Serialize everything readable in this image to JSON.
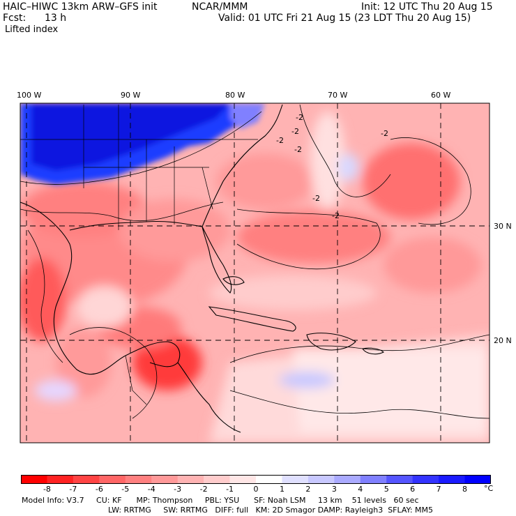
{
  "header": {
    "model": "HAIC–HIWC 13km ARW–GFS init",
    "org": "NCAR/MMM",
    "init": "Init: 12 UTC Thu 20 Aug 15",
    "fcst_label": "Fcst:",
    "fcst_value": "13 h",
    "valid": "Valid: 01 UTC Fri 21 Aug 15 (23 LDT Thu 20 Aug 15)",
    "field": "Lifted index"
  },
  "map_axes": {
    "lon_labels": [
      "100 W",
      "90 W",
      "80 W",
      "70 W",
      "60 W"
    ],
    "lat_labels": [
      "30 N",
      "20 N"
    ],
    "contour_labels": [
      "-2",
      "-2",
      "-2",
      "-2",
      "-2",
      "-2",
      "-2"
    ]
  },
  "colorbar": {
    "labels": [
      "-8",
      "-7",
      "-6",
      "-5",
      "-4",
      "-3",
      "-2",
      "-1",
      "0",
      "1",
      "2",
      "3",
      "4",
      "5",
      "6",
      "7",
      "8"
    ],
    "unit": "°C",
    "colors": [
      "#ff0000",
      "#ff2222",
      "#ff4444",
      "#ff6666",
      "#ff8080",
      "#ff9999",
      "#ffb3b3",
      "#ffcccc",
      "#ffe6e6",
      "#ffffff",
      "#e0e0ff",
      "#c8c8ff",
      "#aaaaff",
      "#8080ff",
      "#5555ff",
      "#3333ff",
      "#1a1aff",
      "#0000ff"
    ]
  },
  "footer": {
    "line1": "Model Info: V3.7     CU: KF      MP: Thompson     PBL: YSU      SF: Noah LSM     13 km    51 levels   60 sec",
    "line2": "LW: RRTMG     SW: RRTMG   DIFF: full   KM: 2D Smagor DAMP: Rayleigh3  SFLAY: MM5"
  }
}
